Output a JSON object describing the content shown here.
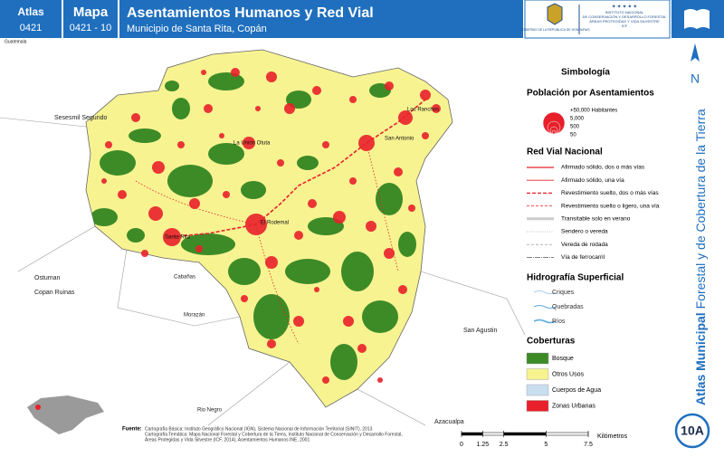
{
  "header": {
    "atlas_label": "Atlas",
    "atlas_code": "0421",
    "mapa_label": "Mapa",
    "mapa_code": "0421 - 10",
    "title": "Asentamientos Humanos y Red Vial",
    "subtitle": "Municipio de Santa Rita, Copán",
    "gov_logo": "GOBIERNO DE LA REPÚBLICA DE HONDURAS",
    "institute": [
      "INSTITUTO NACIONAL",
      "DE CONSERVACIÓN Y DESARROLLO FORESTAL",
      "ÁREAS PROTEGIDAS Y VIDA SILVESTRE",
      "ICF"
    ]
  },
  "map": {
    "neighbor_labels": [
      "Guatemala",
      "Sesesmil Segundo",
      "Ostuman",
      "Copan Ruinas",
      "Cabañas",
      "Morazán",
      "San Agustin",
      "Rio Negro",
      "Azacualpa"
    ],
    "settlement_labels": [
      "Los Ranchos",
      "San Antonio",
      "La Unión Otuta",
      "El Rodemal",
      "Santa Rita"
    ]
  },
  "legend": {
    "title": "Simbología",
    "population": {
      "title": "Población por Asentamientos",
      "sizes": [
        "+50,000 Habitantes",
        "5,000",
        "500",
        "50"
      ]
    },
    "roads": {
      "title": "Red Vial Nacional",
      "items": [
        "Afirmado sólido, dos o más vías",
        "Afirmado sólido, una vía",
        "Revestimiento suelto, dos o más vías",
        "Revestimiento suelto o ligero, una vía",
        "Transitable solo en verano",
        "Sendero o vereda",
        "Vereda de rodada",
        "Vía de ferrocarril"
      ]
    },
    "hydro": {
      "title": "Hidrografía Superficial",
      "items": [
        "Criques",
        "Quebradas",
        "Ríos"
      ]
    },
    "cover": {
      "title": "Coberturas",
      "items": [
        "Bosque",
        "Otros Usos",
        "Cuerpos de Agua",
        "Zonas Urbanas"
      ]
    }
  },
  "side": {
    "atlas_bold": "Atlas Municipal",
    "atlas_rest": "Forestal y de Cobertura de la Tierra",
    "north": "N",
    "badge": "10A"
  },
  "footer": {
    "source_label": "Fuente:",
    "sources": [
      "Cartografía Básica: Instituto Geográfico Nacional (IGN), Sistema Nacional de Información Territorial (SINIT), 2013",
      "Cartografía Temática: Mapa Nacional Forestal y Cobertura de la Tierra, Instituto Nacional de Conservación y Desarrollo Forestal,",
      "Áreas Protegidas y Vida Silvestre (ICF, 2014), Asentamientos Humanos INE, 2001"
    ],
    "scale_ticks": [
      0,
      1.25,
      2.5,
      5,
      7.5
    ],
    "scale_unit": "Kilómetros"
  }
}
